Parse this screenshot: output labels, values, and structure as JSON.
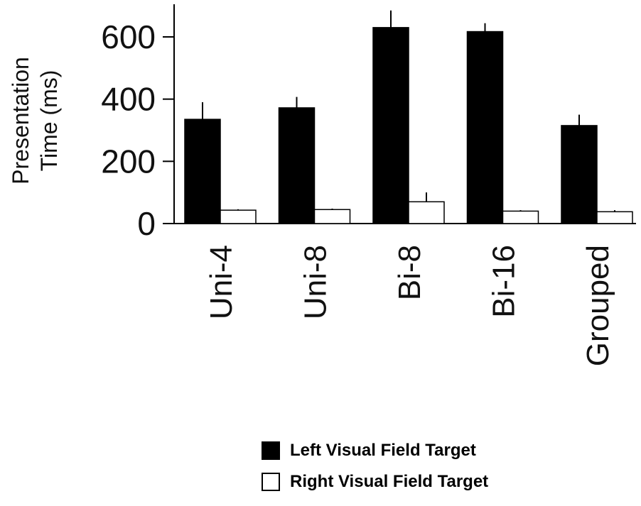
{
  "chart_data": {
    "type": "bar",
    "title": "",
    "ylabel_lines": [
      "Presentation",
      "Time (ms)"
    ],
    "xlabel": "",
    "categories": [
      "Uni-4",
      "Uni-8",
      "Bi-8",
      "Bi-16",
      "Grouped"
    ],
    "ylim": [
      0,
      700
    ],
    "yticks": [
      0,
      200,
      400,
      600
    ],
    "grid": false,
    "legend_position": "bottom",
    "series": [
      {
        "name": "Left Visual Field Target",
        "color": "#000000",
        "values": [
          335,
          372,
          630,
          617,
          315
        ],
        "errors": [
          55,
          35,
          55,
          27,
          35
        ]
      },
      {
        "name": "Right Visual Field Target",
        "color": "#ffffff",
        "values": [
          43,
          45,
          70,
          40,
          38
        ],
        "errors": [
          3,
          3,
          30,
          3,
          5
        ]
      }
    ]
  }
}
